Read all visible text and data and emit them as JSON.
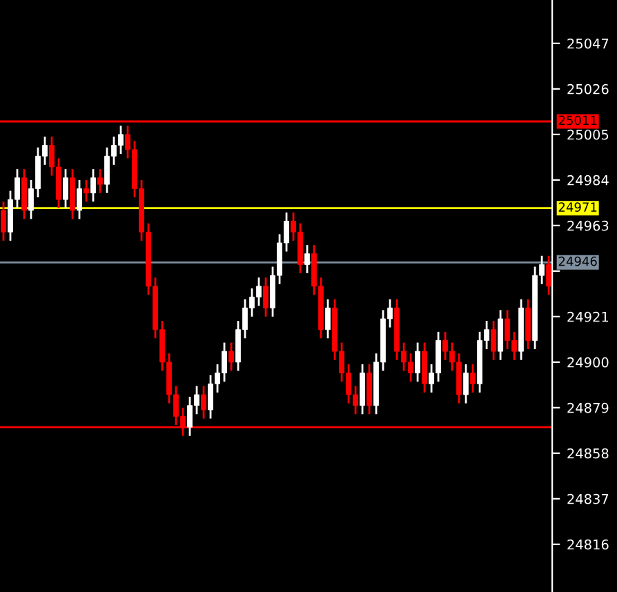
{
  "chart_data": {
    "type": "candlestick",
    "categories": [
      null,
      null,
      null,
      null,
      null,
      null,
      null,
      null,
      null,
      null,
      null,
      null,
      null,
      null,
      null,
      null,
      null,
      null,
      null,
      null,
      null,
      null,
      null,
      null,
      null,
      null,
      null,
      null,
      null,
      null,
      null,
      null,
      null,
      null,
      null,
      null,
      null,
      null,
      null,
      null,
      null,
      null,
      null,
      null,
      null,
      null,
      null,
      null,
      null,
      null,
      null,
      null,
      null,
      null,
      null,
      null,
      null,
      null,
      null,
      null,
      null,
      null,
      null,
      null,
      null,
      null,
      null,
      null,
      null,
      null,
      null,
      null,
      null,
      null,
      null,
      null,
      null,
      null,
      null,
      null
    ],
    "ohlc": [
      [
        24970,
        24974,
        24956,
        24960
      ],
      [
        24960,
        24979,
        24956,
        24975
      ],
      [
        24975,
        24989,
        24971,
        24985
      ],
      [
        24985,
        24989,
        24966,
        24970
      ],
      [
        24970,
        24984,
        24966,
        24980
      ],
      [
        24980,
        24999,
        24976,
        24995
      ],
      [
        24995,
        25004,
        24991,
        25000
      ],
      [
        25000,
        25004,
        24986,
        24990
      ],
      [
        24990,
        24994,
        24971,
        24975
      ],
      [
        24975,
        24989,
        24971,
        24985
      ],
      [
        24985,
        24989,
        24966,
        24970
      ],
      [
        24970,
        24984,
        24966,
        24980
      ],
      [
        24980,
        24984,
        24974,
        24978
      ],
      [
        24978,
        24989,
        24974,
        24985
      ],
      [
        24985,
        24989,
        24978,
        24982
      ],
      [
        24982,
        24999,
        24978,
        24995
      ],
      [
        24995,
        25004,
        24991,
        25000
      ],
      [
        25000,
        25009,
        24996,
        25005
      ],
      [
        25005,
        25009,
        24994,
        24998
      ],
      [
        24998,
        25002,
        24976,
        24980
      ],
      [
        24980,
        24984,
        24956,
        24960
      ],
      [
        24960,
        24964,
        24931,
        24935
      ],
      [
        24935,
        24939,
        24911,
        24915
      ],
      [
        24915,
        24919,
        24896,
        24900
      ],
      [
        24900,
        24904,
        24881,
        24885
      ],
      [
        24885,
        24889,
        24871,
        24875
      ],
      [
        24875,
        24879,
        24866,
        24870
      ],
      [
        24870,
        24884,
        24866,
        24880
      ],
      [
        24880,
        24889,
        24876,
        24885
      ],
      [
        24885,
        24889,
        24874,
        24878
      ],
      [
        24878,
        24894,
        24874,
        24890
      ],
      [
        24890,
        24899,
        24886,
        24895
      ],
      [
        24895,
        24909,
        24891,
        24905
      ],
      [
        24905,
        24909,
        24896,
        24900
      ],
      [
        24900,
        24919,
        24896,
        24915
      ],
      [
        24915,
        24929,
        24911,
        24925
      ],
      [
        24925,
        24934,
        24921,
        24930
      ],
      [
        24930,
        24939,
        24926,
        24935
      ],
      [
        24935,
        24939,
        24921,
        24925
      ],
      [
        24925,
        24944,
        24921,
        24940
      ],
      [
        24940,
        24959,
        24936,
        24955
      ],
      [
        24955,
        24969,
        24951,
        24965
      ],
      [
        24965,
        24969,
        24956,
        24960
      ],
      [
        24960,
        24964,
        24941,
        24945
      ],
      [
        24945,
        24954,
        24941,
        24950
      ],
      [
        24950,
        24954,
        24931,
        24935
      ],
      [
        24935,
        24939,
        24911,
        24915
      ],
      [
        24915,
        24929,
        24911,
        24925
      ],
      [
        24925,
        24929,
        24901,
        24905
      ],
      [
        24905,
        24909,
        24891,
        24895
      ],
      [
        24895,
        24899,
        24881,
        24885
      ],
      [
        24885,
        24889,
        24876,
        24880
      ],
      [
        24880,
        24899,
        24876,
        24895
      ],
      [
        24895,
        24899,
        24876,
        24880
      ],
      [
        24880,
        24904,
        24876,
        24900
      ],
      [
        24900,
        24924,
        24896,
        24920
      ],
      [
        24920,
        24929,
        24916,
        24925
      ],
      [
        24925,
        24929,
        24901,
        24905
      ],
      [
        24905,
        24909,
        24896,
        24900
      ],
      [
        24900,
        24904,
        24891,
        24895
      ],
      [
        24895,
        24909,
        24891,
        24905
      ],
      [
        24905,
        24909,
        24886,
        24890
      ],
      [
        24890,
        24899,
        24886,
        24895
      ],
      [
        24895,
        24914,
        24891,
        24910
      ],
      [
        24910,
        24914,
        24901,
        24905
      ],
      [
        24905,
        24909,
        24896,
        24900
      ],
      [
        24900,
        24904,
        24881,
        24885
      ],
      [
        24885,
        24899,
        24881,
        24895
      ],
      [
        24895,
        24899,
        24886,
        24890
      ],
      [
        24890,
        24914,
        24886,
        24910
      ],
      [
        24910,
        24919,
        24906,
        24915
      ],
      [
        24915,
        24919,
        24901,
        24905
      ],
      [
        24905,
        24924,
        24901,
        24920
      ],
      [
        24920,
        24924,
        24906,
        24910
      ],
      [
        24910,
        24914,
        24901,
        24905
      ],
      [
        24905,
        24929,
        24901,
        24925
      ],
      [
        24925,
        24929,
        24906,
        24910
      ],
      [
        24910,
        24944,
        24906,
        24940
      ],
      [
        24940,
        24949,
        24936,
        24945
      ],
      [
        24945,
        24949,
        24931,
        24935
      ]
    ],
    "ylim": [
      24794,
      25067
    ],
    "yticks": [
      24816,
      24837,
      24858,
      24879,
      24900,
      24921,
      {
        "value": 24942,
        "label": null
      },
      24963,
      24984,
      25005,
      25026,
      25047
    ],
    "ref_lines": [
      {
        "axis": "y",
        "value": 25011,
        "label": "25011",
        "color": "#ff0000"
      },
      {
        "axis": "y",
        "value": 24971,
        "label": "24971",
        "color": "#ffff00"
      },
      {
        "axis": "y",
        "value": 24946,
        "label": "24946",
        "color": "#8090a0"
      },
      {
        "axis": "y",
        "value": 24870,
        "color": "#ff0000"
      }
    ],
    "grid": false,
    "tick_labels": "y"
  }
}
